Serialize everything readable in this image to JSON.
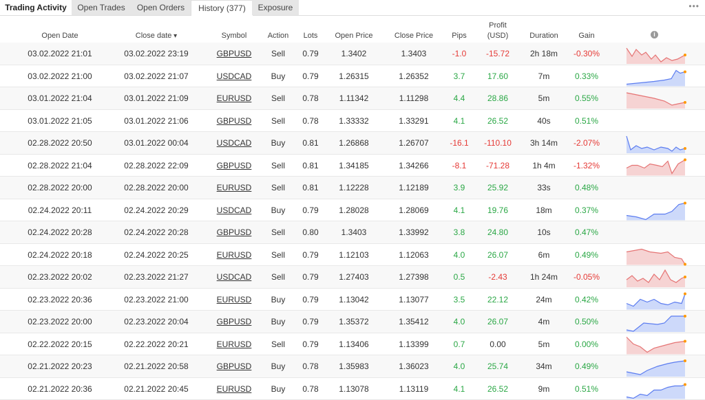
{
  "tabs": [
    "Trading Activity",
    "Open Trades",
    "Open Orders",
    "History (377)",
    "Exposure"
  ],
  "active_tab": 3,
  "table": {
    "columns": [
      "Open Date",
      "Close date",
      "Symbol",
      "Action",
      "Lots",
      "Open Price",
      "Close Price",
      "Pips",
      "Profit",
      "Duration",
      "Gain"
    ],
    "profit_unit": "(USD)",
    "rows": [
      [
        "03.02.2022 21:01",
        "03.02.2022 23:19",
        "GBPUSD",
        "Sell",
        "0.79",
        "1.3402",
        "1.3403",
        "-1.0",
        "-15.72",
        "2h 18m",
        "-0.30%"
      ],
      [
        "03.02.2022 21:00",
        "03.02.2022 21:07",
        "USDCAD",
        "Buy",
        "0.79",
        "1.26315",
        "1.26352",
        "3.7",
        "17.60",
        "7m",
        "0.33%"
      ],
      [
        "03.01.2022 21:04",
        "03.01.2022 21:09",
        "EURUSD",
        "Sell",
        "0.78",
        "1.11342",
        "1.11298",
        "4.4",
        "28.86",
        "5m",
        "0.55%"
      ],
      [
        "03.01.2022 21:05",
        "03.01.2022 21:06",
        "GBPUSD",
        "Sell",
        "0.78",
        "1.33332",
        "1.33291",
        "4.1",
        "26.52",
        "40s",
        "0.51%"
      ],
      [
        "02.28.2022 20:50",
        "03.01.2022 00:04",
        "USDCAD",
        "Buy",
        "0.81",
        "1.26868",
        "1.26707",
        "-16.1",
        "-110.10",
        "3h 14m",
        "-2.07%"
      ],
      [
        "02.28.2022 21:04",
        "02.28.2022 22:09",
        "GBPUSD",
        "Sell",
        "0.81",
        "1.34185",
        "1.34266",
        "-8.1",
        "-71.28",
        "1h 4m",
        "-1.32%"
      ],
      [
        "02.28.2022 20:00",
        "02.28.2022 20:00",
        "EURUSD",
        "Sell",
        "0.81",
        "1.12228",
        "1.12189",
        "3.9",
        "25.92",
        "33s",
        "0.48%"
      ],
      [
        "02.24.2022 20:11",
        "02.24.2022 20:29",
        "USDCAD",
        "Buy",
        "0.79",
        "1.28028",
        "1.28069",
        "4.1",
        "19.76",
        "18m",
        "0.37%"
      ],
      [
        "02.24.2022 20:28",
        "02.24.2022 20:28",
        "GBPUSD",
        "Sell",
        "0.80",
        "1.3403",
        "1.33992",
        "3.8",
        "24.80",
        "10s",
        "0.47%"
      ],
      [
        "02.24.2022 20:18",
        "02.24.2022 20:25",
        "EURUSD",
        "Sell",
        "0.79",
        "1.12103",
        "1.12063",
        "4.0",
        "26.07",
        "6m",
        "0.49%"
      ],
      [
        "02.23.2022 20:02",
        "02.23.2022 21:27",
        "USDCAD",
        "Sell",
        "0.79",
        "1.27403",
        "1.27398",
        "0.5",
        "-2.43",
        "1h 24m",
        "-0.05%"
      ],
      [
        "02.23.2022 20:36",
        "02.23.2022 21:00",
        "EURUSD",
        "Buy",
        "0.79",
        "1.13042",
        "1.13077",
        "3.5",
        "22.12",
        "24m",
        "0.42%"
      ],
      [
        "02.23.2022 20:00",
        "02.23.2022 20:04",
        "GBPUSD",
        "Buy",
        "0.79",
        "1.35372",
        "1.35412",
        "4.0",
        "26.07",
        "4m",
        "0.50%"
      ],
      [
        "02.22.2022 20:15",
        "02.22.2022 20:21",
        "EURUSD",
        "Sell",
        "0.79",
        "1.13406",
        "1.13399",
        "0.7",
        "0.00",
        "5m",
        "0.00%"
      ],
      [
        "02.21.2022 20:23",
        "02.21.2022 20:58",
        "GBPUSD",
        "Buy",
        "0.78",
        "1.35983",
        "1.36023",
        "4.0",
        "25.74",
        "34m",
        "0.49%"
      ],
      [
        "02.21.2022 20:36",
        "02.21.2022 20:45",
        "EURUSD",
        "Buy",
        "0.78",
        "1.13078",
        "1.13119",
        "4.1",
        "26.52",
        "9m",
        "0.51%"
      ]
    ]
  }
}
